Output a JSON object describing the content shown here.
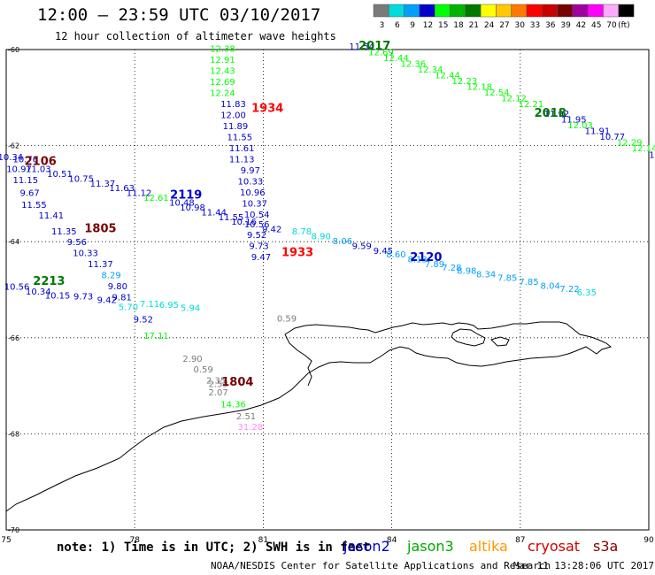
{
  "header": {
    "title": "12:00 – 23:59 UTC 03/10/2017",
    "subtitle": "12 hour collection of altimeter wave heights"
  },
  "legend": {
    "unit": "(ft)",
    "entries": [
      {
        "label": "3",
        "color": "#7a7a7a"
      },
      {
        "label": "6",
        "color": "#00dcdc"
      },
      {
        "label": "9",
        "color": "#00a0ff"
      },
      {
        "label": "12",
        "color": "#0000cc"
      },
      {
        "label": "15",
        "color": "#00ff00"
      },
      {
        "label": "18",
        "color": "#00b400"
      },
      {
        "label": "21",
        "color": "#007800"
      },
      {
        "label": "24",
        "color": "#ffff00"
      },
      {
        "label": "27",
        "color": "#ffc800"
      },
      {
        "label": "30",
        "color": "#ff7800"
      },
      {
        "label": "33",
        "color": "#ff0000"
      },
      {
        "label": "36",
        "color": "#c80000"
      },
      {
        "label": "39",
        "color": "#780000"
      },
      {
        "label": "42",
        "color": "#a000a0"
      },
      {
        "label": "45",
        "color": "#ff00ff"
      },
      {
        "label": "70",
        "color": "#ffaaff"
      },
      {
        "label": "",
        "color": "#000000"
      }
    ]
  },
  "axes": {
    "lon_ticks": [
      "75",
      "78",
      "81",
      "84",
      "87",
      "90"
    ],
    "lat_ticks": [
      "-60",
      "-62",
      "-64",
      "-66",
      "-68",
      "-70"
    ]
  },
  "chart_data": {
    "type": "scatter",
    "xlim": [
      75,
      90
    ],
    "ylim": [
      -70,
      -60
    ],
    "grid": true,
    "track_labels": [
      {
        "text": "2017",
        "lon": 83.6,
        "lat": -60.0,
        "color": "#007800"
      },
      {
        "text": "2018",
        "lon": 87.7,
        "lat": -61.4,
        "color": "#007800"
      },
      {
        "text": "1934",
        "lon": 81.1,
        "lat": -61.3,
        "color": "#ff0000"
      },
      {
        "text": "2106",
        "lon": 75.8,
        "lat": -62.4,
        "color": "#780000"
      },
      {
        "text": "2119",
        "lon": 79.2,
        "lat": -63.1,
        "color": "#0000cc"
      },
      {
        "text": "1805",
        "lon": 77.2,
        "lat": -63.8,
        "color": "#780000"
      },
      {
        "text": "1933",
        "lon": 81.8,
        "lat": -64.3,
        "color": "#ff0000"
      },
      {
        "text": "2120",
        "lon": 84.8,
        "lat": -64.4,
        "color": "#0000cc"
      },
      {
        "text": "2213",
        "lon": 76.0,
        "lat": -64.9,
        "color": "#007800"
      },
      {
        "text": "1804",
        "lon": 80.4,
        "lat": -67.0,
        "color": "#780000"
      }
    ],
    "observations": [
      {
        "v": "12.38",
        "lon": 80.05,
        "lat": -60.05,
        "color": "#00ff00"
      },
      {
        "v": "12.91",
        "lon": 80.05,
        "lat": -60.28,
        "color": "#00ff00"
      },
      {
        "v": "12.43",
        "lon": 80.05,
        "lat": -60.51,
        "color": "#00ff00"
      },
      {
        "v": "12.69",
        "lon": 80.05,
        "lat": -60.74,
        "color": "#00ff00"
      },
      {
        "v": "12.24",
        "lon": 80.05,
        "lat": -60.97,
        "color": "#00ff00"
      },
      {
        "v": "11.83",
        "lon": 80.3,
        "lat": -61.2,
        "color": "#0000cc"
      },
      {
        "v": "12.00",
        "lon": 80.3,
        "lat": -61.43,
        "color": "#0000cc"
      },
      {
        "v": "11.89",
        "lon": 80.35,
        "lat": -61.66,
        "color": "#0000cc"
      },
      {
        "v": "11.55",
        "lon": 80.45,
        "lat": -61.89,
        "color": "#0000cc"
      },
      {
        "v": "11.61",
        "lon": 80.5,
        "lat": -62.12,
        "color": "#0000cc"
      },
      {
        "v": "11.13",
        "lon": 80.5,
        "lat": -62.35,
        "color": "#0000cc"
      },
      {
        "v": "9.97",
        "lon": 80.7,
        "lat": -62.58,
        "color": "#0000cc"
      },
      {
        "v": "10.33",
        "lon": 80.7,
        "lat": -62.81,
        "color": "#0000cc"
      },
      {
        "v": "10.96",
        "lon": 80.75,
        "lat": -63.04,
        "color": "#0000cc"
      },
      {
        "v": "10.37",
        "lon": 80.8,
        "lat": -63.27,
        "color": "#0000cc"
      },
      {
        "v": "10.54",
        "lon": 80.85,
        "lat": -63.5,
        "color": "#0000cc"
      },
      {
        "v": "10.56",
        "lon": 80.85,
        "lat": -63.7,
        "color": "#0000cc"
      },
      {
        "v": "9.52",
        "lon": 80.85,
        "lat": -63.92,
        "color": "#0000cc"
      },
      {
        "v": "9.73",
        "lon": 80.9,
        "lat": -64.15,
        "color": "#0000cc"
      },
      {
        "v": "9.47",
        "lon": 80.95,
        "lat": -64.38,
        "color": "#0000cc"
      },
      {
        "v": "8.78",
        "lon": 81.9,
        "lat": -63.85,
        "color": "#00dcdc"
      },
      {
        "v": "8.90",
        "lon": 82.35,
        "lat": -63.95,
        "color": "#00dcdc"
      },
      {
        "v": "8.06",
        "lon": 82.85,
        "lat": -64.05,
        "color": "#00a0ff"
      },
      {
        "v": "9.59",
        "lon": 83.3,
        "lat": -64.15,
        "color": "#0000cc"
      },
      {
        "v": "9.45",
        "lon": 83.8,
        "lat": -64.25,
        "color": "#0000cc"
      },
      {
        "v": "8.60",
        "lon": 84.1,
        "lat": -64.33,
        "color": "#00a0ff"
      },
      {
        "v": "8.13",
        "lon": 84.6,
        "lat": -64.43,
        "color": "#00a0ff"
      },
      {
        "v": "7.89",
        "lon": 85.0,
        "lat": -64.53,
        "color": "#00a0ff"
      },
      {
        "v": "7.28",
        "lon": 85.4,
        "lat": -64.6,
        "color": "#00a0ff"
      },
      {
        "v": "8.98",
        "lon": 85.75,
        "lat": -64.67,
        "color": "#00a0ff"
      },
      {
        "v": "8.34",
        "lon": 86.2,
        "lat": -64.74,
        "color": "#00a0ff"
      },
      {
        "v": "7.85",
        "lon": 86.7,
        "lat": -64.82,
        "color": "#00a0ff"
      },
      {
        "v": "7.85",
        "lon": 87.2,
        "lat": -64.9,
        "color": "#00a0ff"
      },
      {
        "v": "8.04",
        "lon": 87.7,
        "lat": -64.98,
        "color": "#00a0ff"
      },
      {
        "v": "7.22",
        "lon": 88.15,
        "lat": -65.05,
        "color": "#00a0ff"
      },
      {
        "v": "6.35",
        "lon": 88.55,
        "lat": -65.12,
        "color": "#00dcdc"
      },
      {
        "v": "11.54",
        "lon": 83.3,
        "lat": -60.0,
        "color": "#0000cc"
      },
      {
        "v": "12.69",
        "lon": 83.75,
        "lat": -60.12,
        "color": "#00ff00"
      },
      {
        "v": "12.44",
        "lon": 84.1,
        "lat": -60.24,
        "color": "#00ff00"
      },
      {
        "v": "12.36",
        "lon": 84.5,
        "lat": -60.36,
        "color": "#00ff00"
      },
      {
        "v": "12.34",
        "lon": 84.9,
        "lat": -60.48,
        "color": "#00ff00"
      },
      {
        "v": "12.44",
        "lon": 85.3,
        "lat": -60.6,
        "color": "#00ff00"
      },
      {
        "v": "12.23",
        "lon": 85.7,
        "lat": -60.72,
        "color": "#00ff00"
      },
      {
        "v": "12.18",
        "lon": 86.05,
        "lat": -60.84,
        "color": "#00ff00"
      },
      {
        "v": "12.54",
        "lon": 86.45,
        "lat": -60.96,
        "color": "#00ff00"
      },
      {
        "v": "12.12",
        "lon": 86.85,
        "lat": -61.08,
        "color": "#00ff00"
      },
      {
        "v": "12.21",
        "lon": 87.25,
        "lat": -61.2,
        "color": "#00ff00"
      },
      {
        "v": "11.92",
        "lon": 87.85,
        "lat": -61.4,
        "color": "#0000cc"
      },
      {
        "v": "11.95",
        "lon": 88.25,
        "lat": -61.52,
        "color": "#0000cc"
      },
      {
        "v": "12.03",
        "lon": 88.4,
        "lat": -61.64,
        "color": "#00ff00"
      },
      {
        "v": "11.91",
        "lon": 88.8,
        "lat": -61.76,
        "color": "#0000cc"
      },
      {
        "v": "10.77",
        "lon": 89.15,
        "lat": -61.88,
        "color": "#0000cc"
      },
      {
        "v": "12.29",
        "lon": 89.55,
        "lat": -62.0,
        "color": "#00ff00"
      },
      {
        "v": "12.14",
        "lon": 89.9,
        "lat": -62.12,
        "color": "#00ff00"
      },
      {
        "v": "11.81",
        "lon": 90.3,
        "lat": -62.26,
        "color": "#0000cc"
      },
      {
        "v": "11.",
        "lon": 90.8,
        "lat": -62.36,
        "color": "#0000cc"
      },
      {
        "v": "10.34",
        "lon": 75.1,
        "lat": -62.3,
        "color": "#0000cc"
      },
      {
        "v": "10.76",
        "lon": 75.45,
        "lat": -62.35,
        "color": "#0000cc"
      },
      {
        "v": "10.97",
        "lon": 75.3,
        "lat": -62.55,
        "color": "#0000cc"
      },
      {
        "v": "11.03",
        "lon": 75.75,
        "lat": -62.55,
        "color": "#0000cc"
      },
      {
        "v": "11.15",
        "lon": 75.45,
        "lat": -62.78,
        "color": "#0000cc"
      },
      {
        "v": "10.51",
        "lon": 76.25,
        "lat": -62.65,
        "color": "#0000cc"
      },
      {
        "v": "10.75",
        "lon": 76.75,
        "lat": -62.75,
        "color": "#0000cc"
      },
      {
        "v": "11.37",
        "lon": 77.25,
        "lat": -62.85,
        "color": "#0000cc"
      },
      {
        "v": "11.63",
        "lon": 77.7,
        "lat": -62.95,
        "color": "#0000cc"
      },
      {
        "v": "9.67",
        "lon": 75.55,
        "lat": -63.05,
        "color": "#0000cc"
      },
      {
        "v": "11.12",
        "lon": 78.1,
        "lat": -63.05,
        "color": "#0000cc"
      },
      {
        "v": "12.61",
        "lon": 78.5,
        "lat": -63.15,
        "color": "#00ff00"
      },
      {
        "v": "11.55",
        "lon": 75.65,
        "lat": -63.3,
        "color": "#0000cc"
      },
      {
        "v": "10.98",
        "lon": 79.35,
        "lat": -63.35,
        "color": "#0000cc"
      },
      {
        "v": "10.48",
        "lon": 79.1,
        "lat": -63.25,
        "color": "#0000cc"
      },
      {
        "v": "11.44",
        "lon": 79.85,
        "lat": -63.45,
        "color": "#0000cc"
      },
      {
        "v": "11.55",
        "lon": 80.25,
        "lat": -63.55,
        "color": "#0000cc"
      },
      {
        "v": "10.16",
        "lon": 80.55,
        "lat": -63.65,
        "color": "#0000cc"
      },
      {
        "v": "9.42",
        "lon": 81.2,
        "lat": -63.8,
        "color": "#0000cc"
      },
      {
        "v": "11.41",
        "lon": 76.05,
        "lat": -63.52,
        "color": "#0000cc"
      },
      {
        "v": "11.35",
        "lon": 76.35,
        "lat": -63.85,
        "color": "#0000cc"
      },
      {
        "v": "9.56",
        "lon": 76.65,
        "lat": -64.07,
        "color": "#0000cc"
      },
      {
        "v": "10.33",
        "lon": 76.85,
        "lat": -64.3,
        "color": "#0000cc"
      },
      {
        "v": "11.37",
        "lon": 77.2,
        "lat": -64.53,
        "color": "#0000cc"
      },
      {
        "v": "8.29",
        "lon": 77.45,
        "lat": -64.76,
        "color": "#00a0ff"
      },
      {
        "v": "9.80",
        "lon": 77.6,
        "lat": -64.99,
        "color": "#0000cc"
      },
      {
        "v": "10.56",
        "lon": 75.25,
        "lat": -65.0,
        "color": "#0000cc"
      },
      {
        "v": "10.34",
        "lon": 75.75,
        "lat": -65.1,
        "color": "#0000cc"
      },
      {
        "v": "10.15",
        "lon": 76.2,
        "lat": -65.18,
        "color": "#0000cc"
      },
      {
        "v": "9.73",
        "lon": 76.8,
        "lat": -65.2,
        "color": "#0000cc"
      },
      {
        "v": "9.42",
        "lon": 77.35,
        "lat": -65.28,
        "color": "#0000cc"
      },
      {
        "v": "9.81",
        "lon": 77.7,
        "lat": -65.22,
        "color": "#0000cc"
      },
      {
        "v": "5.70",
        "lon": 77.85,
        "lat": -65.42,
        "color": "#00dcdc"
      },
      {
        "v": "7.11",
        "lon": 78.35,
        "lat": -65.36,
        "color": "#00dcdc"
      },
      {
        "v": "6.95",
        "lon": 78.8,
        "lat": -65.38,
        "color": "#00dcdc"
      },
      {
        "v": "5.94",
        "lon": 79.3,
        "lat": -65.44,
        "color": "#00dcdc"
      },
      {
        "v": "9.52",
        "lon": 78.2,
        "lat": -65.68,
        "color": "#0000cc"
      },
      {
        "v": "17.11",
        "lon": 78.5,
        "lat": -66.02,
        "color": "#00ff00"
      },
      {
        "v": "0.59",
        "lon": 81.55,
        "lat": -65.66,
        "color": "#7a7a7a"
      },
      {
        "v": "2.90",
        "lon": 79.35,
        "lat": -66.5,
        "color": "#7a7a7a"
      },
      {
        "v": "0.59",
        "lon": 79.6,
        "lat": -66.72,
        "color": "#7a7a7a"
      },
      {
        "v": "2.35",
        "lon": 79.9,
        "lat": -66.95,
        "color": "#7a7a7a"
      },
      {
        "v": "2.53",
        "lon": 79.95,
        "lat": -67.03,
        "color": "#7a7a7a"
      },
      {
        "v": "2.07",
        "lon": 79.95,
        "lat": -67.2,
        "color": "#7a7a7a"
      },
      {
        "v": "14.36",
        "lon": 80.3,
        "lat": -67.45,
        "color": "#00ff00"
      },
      {
        "v": "2.51",
        "lon": 80.6,
        "lat": -67.7,
        "color": "#7a7a7a"
      },
      {
        "v": "31.28",
        "lon": 80.7,
        "lat": -67.92,
        "color": "#ff88ff"
      }
    ]
  },
  "satellites": [
    {
      "name": "jason2",
      "color": "#0000cc"
    },
    {
      "name": "jason3",
      "color": "#00aa00"
    },
    {
      "name": "altika",
      "color": "#ff9900"
    },
    {
      "name": "cryosat",
      "color": "#cc0000"
    },
    {
      "name": "s3a",
      "color": "#880000"
    }
  ],
  "footer": {
    "note": "note: 1) Time is in UTC; 2) SWH is in feet",
    "credit": "NOAA/NESDIS Center for Satellite Applications and Research",
    "timestamp": "Mar 11 13:28:06 UTC 2017"
  }
}
